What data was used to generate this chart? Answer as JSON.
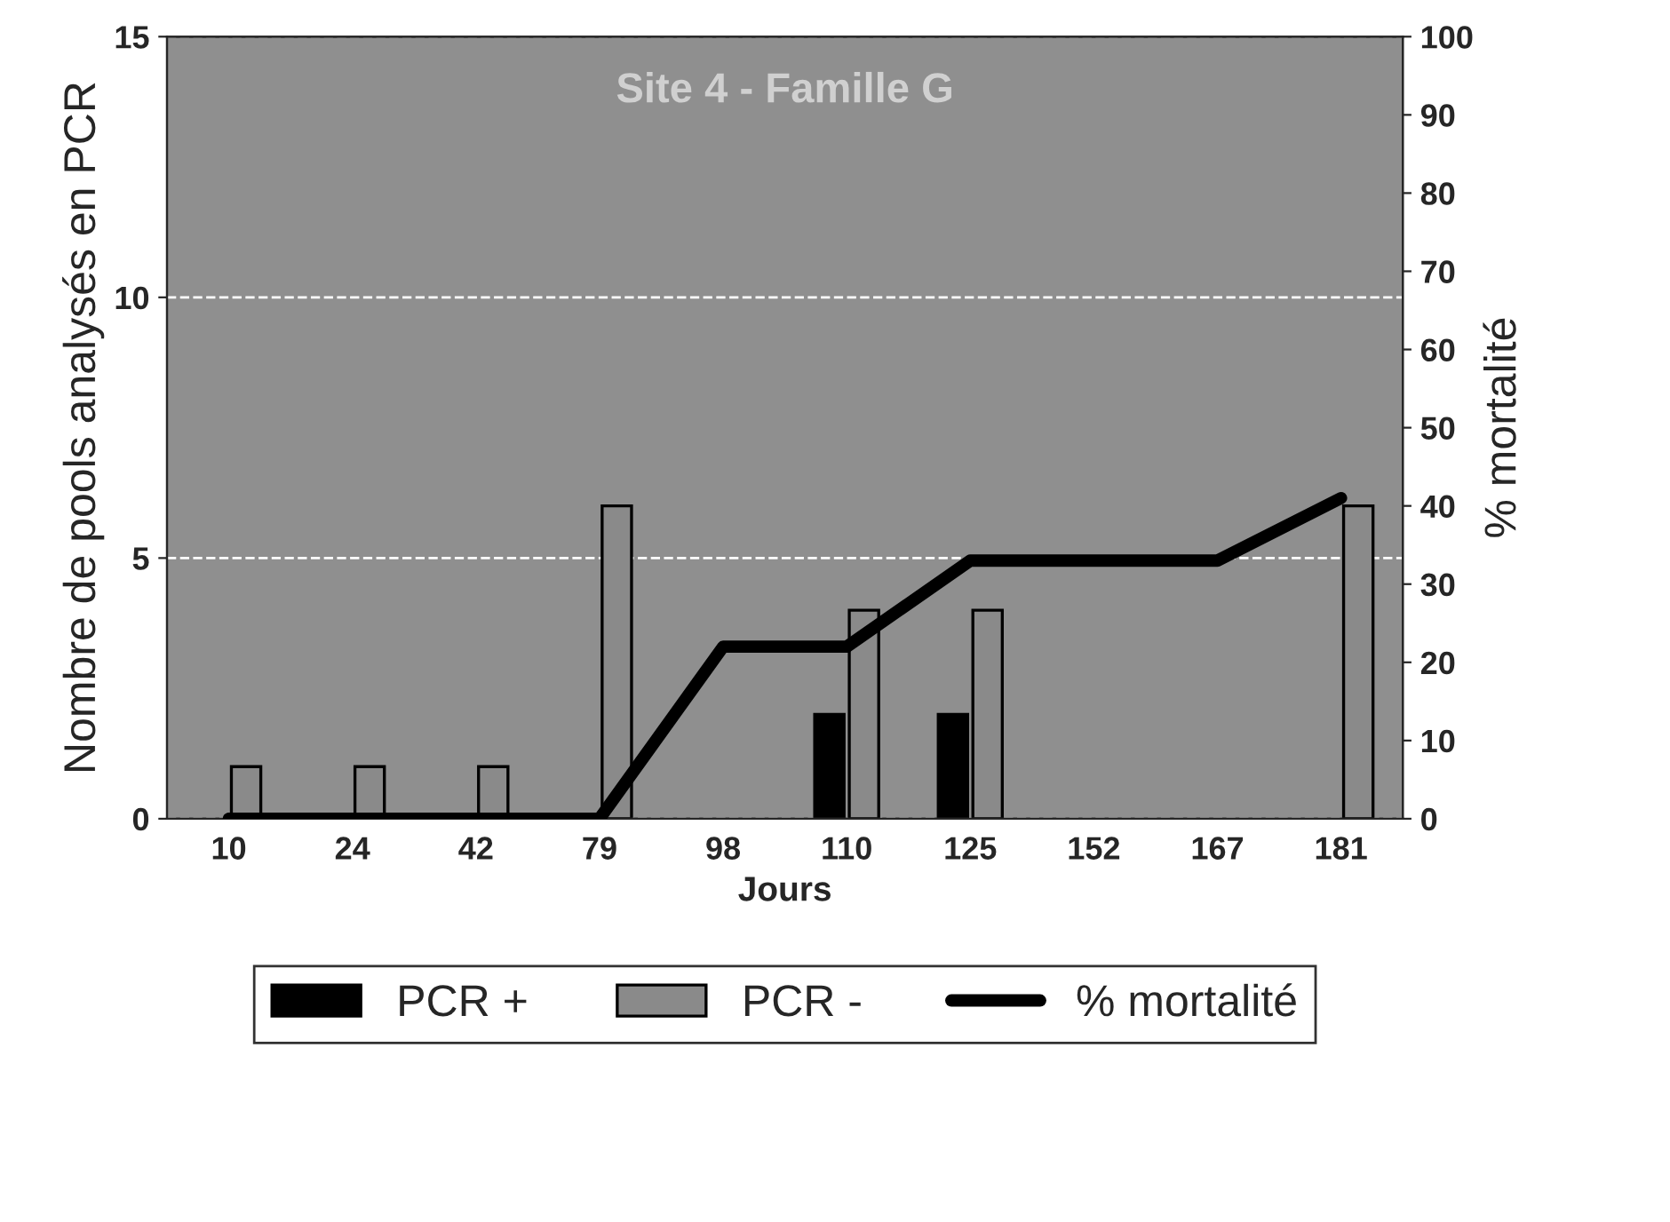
{
  "chart_data": {
    "type": "bar",
    "title": "Site 4 - Famille G",
    "xlabel": "Jours",
    "ylabel": "Nombre de pools analysés en PCR",
    "y2label": "% mortalité",
    "categories": [
      "10",
      "24",
      "42",
      "79",
      "98",
      "110",
      "125",
      "152",
      "167",
      "181"
    ],
    "series": [
      {
        "name": "PCR +",
        "color": "#000000",
        "values": [
          null,
          null,
          null,
          null,
          null,
          2,
          2,
          null,
          null,
          null
        ]
      },
      {
        "name": "PCR -",
        "color": "#8a8a8a",
        "values": [
          1,
          1,
          1,
          6,
          null,
          4,
          4,
          null,
          null,
          6
        ]
      },
      {
        "name": "% mortalité",
        "type": "line",
        "axis": "y2",
        "color": "#000000",
        "line_style": "solid",
        "values": [
          0,
          0,
          0,
          0,
          22,
          22,
          33,
          33,
          33,
          41
        ]
      }
    ],
    "ylim": [
      0,
      15
    ],
    "yticks": [
      0,
      5,
      10,
      15
    ],
    "y2lim": [
      0,
      100
    ],
    "y2ticks": [
      0,
      10,
      20,
      30,
      40,
      50,
      60,
      70,
      80,
      90,
      100
    ],
    "grid": "y",
    "legend": "bottom",
    "marker": "none"
  }
}
